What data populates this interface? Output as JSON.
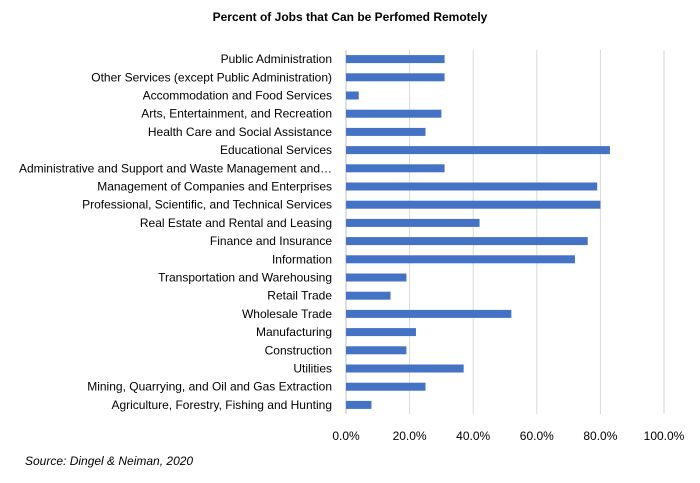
{
  "chart_data": {
    "type": "bar",
    "orientation": "horizontal",
    "title": "Percent of Jobs that Can be Perfomed Remotely",
    "categories": [
      "Public Administration",
      "Other Services (except Public Administration)",
      "Accommodation and Food Services",
      "Arts, Entertainment, and Recreation",
      "Health Care and Social Assistance",
      "Educational Services",
      "Administrative and Support and Waste Management and…",
      "Management of Companies and Enterprises",
      "Professional, Scientific, and Technical Services",
      "Real Estate and Rental and Leasing",
      "Finance and Insurance",
      "Information",
      "Transportation and Warehousing",
      "Retail Trade",
      "Wholesale Trade",
      "Manufacturing",
      "Construction",
      "Utilities",
      "Mining, Quarrying, and Oil and Gas Extraction",
      "Agriculture, Forestry, Fishing and Hunting"
    ],
    "values": [
      31,
      31,
      4,
      30,
      25,
      83,
      31,
      79,
      80,
      42,
      76,
      72,
      19,
      14,
      52,
      22,
      19,
      37,
      25,
      8
    ],
    "xlim": [
      0,
      100
    ],
    "xticks": [
      "0.0%",
      "20.0%",
      "40.0%",
      "60.0%",
      "80.0%",
      "100.0%"
    ],
    "grid": "vertical",
    "bar_color": "#4472c4",
    "xlabel": "",
    "ylabel": ""
  },
  "source_note": "Source: Dingel & Neiman, 2020"
}
